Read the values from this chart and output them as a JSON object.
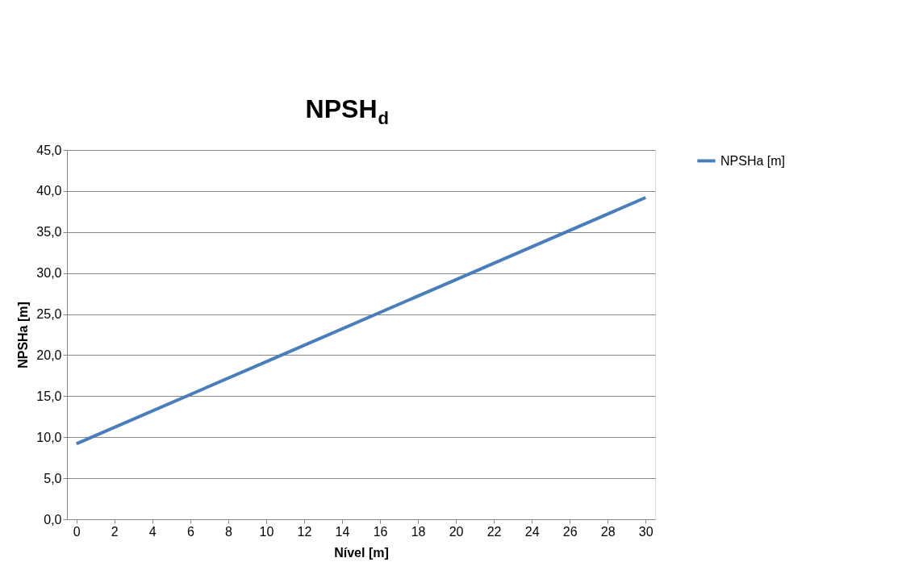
{
  "chart_data": {
    "type": "line",
    "title": "NPSH$_{d}$",
    "xlabel": "Nível [m]",
    "ylabel": "NPSHa [m]",
    "x": [
      0,
      10,
      20,
      30
    ],
    "series": [
      {
        "name": "NPSHa [m]",
        "color": "#4a7ebb",
        "values": [
          9.2,
          19.2,
          29.2,
          39.2
        ]
      }
    ],
    "xlim": [
      -0.5,
      30.5
    ],
    "xticks": [
      0,
      2,
      4,
      6,
      8,
      10,
      12,
      14,
      16,
      18,
      20,
      22,
      24,
      26,
      28,
      30
    ],
    "ylim": [
      0,
      45
    ],
    "yticks": [
      {
        "value": 0,
        "label": "0,0"
      },
      {
        "value": 5,
        "label": "5,0"
      },
      {
        "value": 10,
        "label": "10,0"
      },
      {
        "value": 15,
        "label": "15,0"
      },
      {
        "value": 20,
        "label": "20,0"
      },
      {
        "value": 25,
        "label": "25,0"
      },
      {
        "value": 30,
        "label": "30,0"
      },
      {
        "value": 35,
        "label": "35,0"
      },
      {
        "value": 40,
        "label": "40,0"
      },
      {
        "value": 45,
        "label": "45,0"
      }
    ],
    "grid": "y",
    "legend": "right",
    "marker": "none",
    "line_style": "solid"
  }
}
